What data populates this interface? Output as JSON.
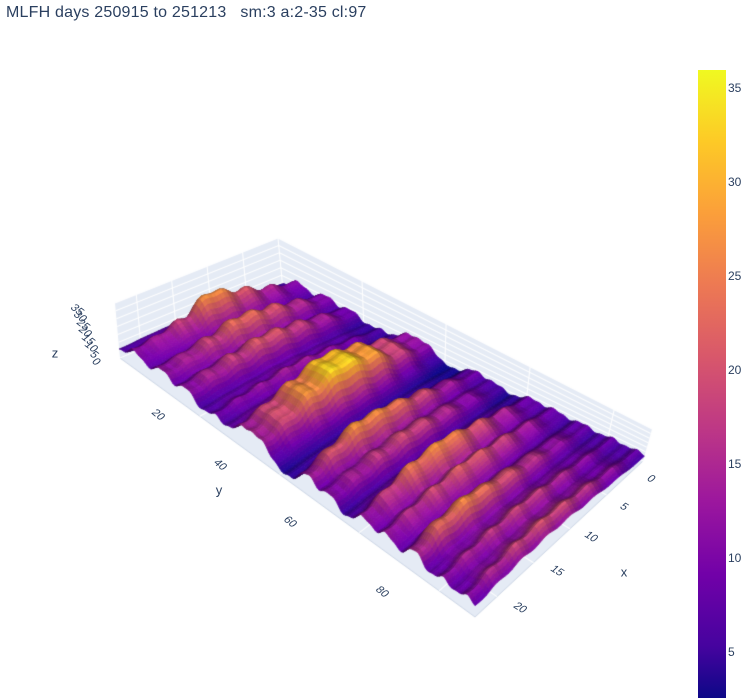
{
  "title": {
    "text": "MLFH days 250915 to 251213   sm:3 a:2-35 cl:97",
    "color": "#2a3f5f"
  },
  "chart_data": {
    "type": "surface",
    "title": "MLFH days 250915 to 251213   sm:3 a:2-35 cl:97",
    "xlabel": "x",
    "ylabel": "y",
    "zlabel": "z",
    "x_range": [
      0,
      23
    ],
    "y_range": [
      0,
      89
    ],
    "z_range": [
      0,
      35
    ],
    "x_ticks": [
      0,
      5,
      10,
      15,
      20
    ],
    "y_ticks": [
      20,
      40,
      60,
      80
    ],
    "z_ticks": [
      0,
      5,
      10,
      15,
      20,
      25,
      30,
      35
    ],
    "colorbar_ticks": [
      5,
      10,
      15,
      20,
      25,
      30,
      35
    ],
    "color_range": [
      1.5,
      36
    ],
    "colorscale_name": "Plasma",
    "colorscale": [
      [
        0.0,
        "#0d0887"
      ],
      [
        0.1111,
        "#46039f"
      ],
      [
        0.2222,
        "#7201a8"
      ],
      [
        0.3333,
        "#9c179e"
      ],
      [
        0.4444,
        "#bd3786"
      ],
      [
        0.5556,
        "#d8576b"
      ],
      [
        0.6667,
        "#ed7953"
      ],
      [
        0.7778,
        "#fb9f3a"
      ],
      [
        0.8889,
        "#fdca26"
      ],
      [
        1.0,
        "#f0f921"
      ]
    ],
    "wall_color": "#e5ebf5",
    "grid_color": "#ffffff",
    "tick_color": "#2a3f5f",
    "background": "#ffffff",
    "grid_on": true,
    "legend_position": "none",
    "surface_model": {
      "ridge_x": [
        0,
        4,
        8,
        12,
        16,
        20,
        23
      ],
      "base": {
        "b0": 7,
        "x_ctrl": [
          0,
          6,
          12,
          18,
          23
        ],
        "x_vals": [
          -2,
          0,
          1,
          0.5,
          -0.5
        ],
        "y_ctrl": [
          0,
          6,
          14,
          24,
          31,
          42,
          50,
          56,
          66,
          78,
          89
        ],
        "y_vals": [
          -1.5,
          0.5,
          0,
          -2,
          0.5,
          -3.5,
          0,
          -2.5,
          0,
          -0.5,
          -1
        ]
      },
      "ridges": [
        {
          "y": 4,
          "w": 2.3,
          "amps": [
            5,
            8,
            14,
            20,
            10,
            6,
            5
          ]
        },
        {
          "y": 11,
          "w": 2.4,
          "amps": [
            5,
            9,
            14,
            16,
            11,
            7,
            6
          ]
        },
        {
          "y": 17,
          "w": 2.3,
          "amps": [
            4,
            8,
            12,
            14,
            11,
            8,
            6
          ]
        },
        {
          "y": 24,
          "w": 2.2,
          "amps": [
            2,
            4,
            6,
            7,
            6,
            5,
            4
          ]
        },
        {
          "y": 31,
          "w": 2.6,
          "amps": [
            5,
            10,
            17,
            20,
            15,
            9,
            6
          ]
        },
        {
          "y": 35.5,
          "w": 3.0,
          "amps": [
            6,
            12,
            22,
            26,
            20,
            12,
            8
          ]
        },
        {
          "y": 47,
          "w": 2.5,
          "amps": [
            4,
            8,
            14,
            19,
            21,
            14,
            8
          ]
        },
        {
          "y": 53,
          "w": 2.2,
          "amps": [
            2,
            6,
            10,
            13,
            11,
            8,
            6
          ]
        },
        {
          "y": 61,
          "w": 2.6,
          "amps": [
            4,
            9,
            15,
            20,
            18,
            11,
            7
          ]
        },
        {
          "y": 67,
          "w": 2.3,
          "amps": [
            3,
            7,
            11,
            13,
            11,
            8,
            6
          ]
        },
        {
          "y": 74,
          "w": 2.5,
          "amps": [
            3,
            6,
            10,
            14,
            19,
            16,
            9
          ]
        },
        {
          "y": 81,
          "w": 2.3,
          "amps": [
            3,
            5,
            8,
            10,
            9,
            7,
            5
          ]
        },
        {
          "y": 87,
          "w": 2.5,
          "amps": [
            3,
            6,
            10,
            12,
            11,
            8,
            5
          ]
        }
      ],
      "detail": {
        "a1": 1.4,
        "f1": 1.9,
        "p1": 1.2,
        "a2": 0.7,
        "f2": 2.1,
        "p2": 0.7
      }
    }
  }
}
